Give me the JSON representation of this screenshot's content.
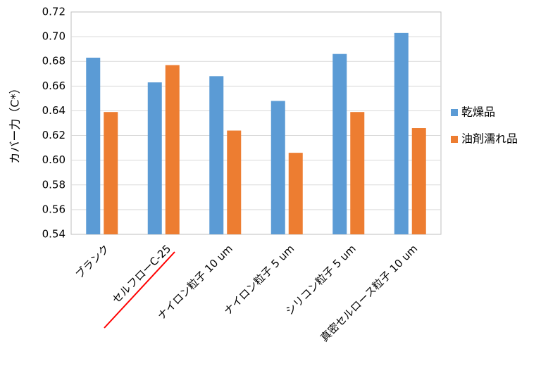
{
  "chart_data": {
    "type": "bar",
    "ylabel": "カバー力（C*）",
    "categories": [
      "ブランク",
      "セルフローC-25",
      "ナイロン粒子 10 um",
      "ナイロン粒子 5 um",
      "シリコン粒子 5 um",
      "真密セルロース粒子 10 um"
    ],
    "series": [
      {
        "name": "乾燥品",
        "color": "#5b9bd5",
        "values": [
          0.683,
          0.663,
          0.668,
          0.648,
          0.686,
          0.703
        ]
      },
      {
        "name": "油剤濡れ品",
        "color": "#ed7d31",
        "values": [
          0.639,
          0.677,
          0.624,
          0.606,
          0.639,
          0.626
        ]
      }
    ],
    "ylim": [
      0.54,
      0.72
    ],
    "yticks": [
      0.54,
      0.56,
      0.58,
      {
        "value": 0.6,
        "label": "0.60"
      },
      0.62,
      0.64,
      0.66,
      0.68,
      {
        "value": 0.7,
        "label": "0.70"
      },
      0.72
    ],
    "grid": true,
    "legend": "right"
  }
}
